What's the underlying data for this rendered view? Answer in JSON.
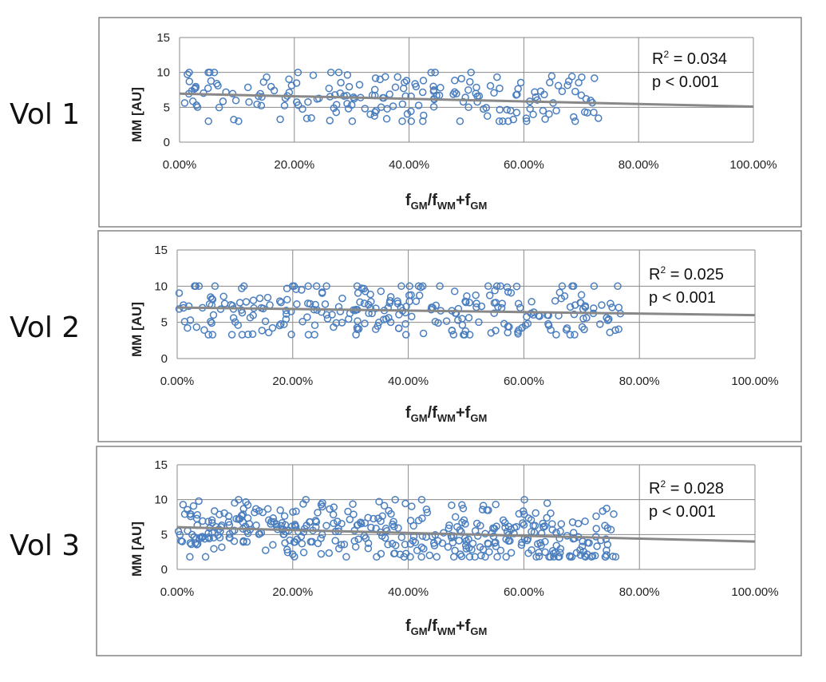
{
  "colors": {
    "marker": "#4a7ebf",
    "trendline": "#888888",
    "grid": "#8a8a8a",
    "frame": "#8c8c8c"
  },
  "chart_data": [
    {
      "type": "scatter",
      "volume_label": "Vol 1",
      "ylabel": "MM [AU]",
      "xlabel": {
        "f1": "f",
        "s1": "GM",
        "slash": "/",
        "f2": "f",
        "s2": "WM",
        "plus": "+",
        "f3": "f",
        "s3": "GM"
      },
      "xlim": [
        0,
        1
      ],
      "ylim": [
        0,
        15
      ],
      "xticks": [
        "0.00%",
        "20.00%",
        "40.00%",
        "60.00%",
        "80.00%",
        "100.00%"
      ],
      "yticks": [
        "0",
        "5",
        "10",
        "15"
      ],
      "grid": true,
      "r2_prefix": "R",
      "r2_exp": "2",
      "r2_value": " = 0.034",
      "p_text": "p < 0.001",
      "trendline": {
        "x": [
          0,
          1
        ],
        "y": [
          6.95,
          5.1
        ]
      },
      "n_points": 200,
      "seed": 11,
      "x_max": 0.73,
      "y_min": 3.0,
      "y_max": 10.0
    },
    {
      "type": "scatter",
      "volume_label": "Vol 2",
      "ylabel": "MM [AU]",
      "xlabel": {
        "f1": "f",
        "s1": "GM",
        "slash": "/",
        "f2": "f",
        "s2": "WM",
        "plus": "+",
        "f3": "f",
        "s3": "GM"
      },
      "xlim": [
        0,
        1
      ],
      "ylim": [
        0,
        15
      ],
      "xticks": [
        "0.00%",
        "20.00%",
        "40.00%",
        "60.00%",
        "80.00%",
        "100.00%"
      ],
      "yticks": [
        "0",
        "5",
        "10",
        "15"
      ],
      "grid": true,
      "r2_prefix": "R",
      "r2_exp": "2",
      "r2_value": " = 0.025",
      "p_text": "p < 0.001",
      "trendline": {
        "x": [
          0,
          1
        ],
        "y": [
          7.05,
          6.0
        ]
      },
      "n_points": 280,
      "seed": 23,
      "x_max": 0.77,
      "y_min": 3.3,
      "y_max": 10.0
    },
    {
      "type": "scatter",
      "volume_label": "Vol 3",
      "ylabel": "MM [AU]",
      "xlabel": {
        "f1": "f",
        "s1": "GM",
        "slash": "/",
        "f2": "f",
        "s2": "WM",
        "plus": "+",
        "f3": "f",
        "s3": "GM"
      },
      "xlim": [
        0,
        1
      ],
      "ylim": [
        0,
        15
      ],
      "xticks": [
        "0.00%",
        "20.00%",
        "40.00%",
        "60.00%",
        "80.00%",
        "100.00%"
      ],
      "yticks": [
        "0",
        "5",
        "10",
        "15"
      ],
      "grid": true,
      "r2_prefix": "R",
      "r2_exp": "2",
      "r2_value": " = 0.028",
      "p_text": "p < 0.001",
      "trendline": {
        "x": [
          0,
          1
        ],
        "y": [
          6.05,
          4.0
        ]
      },
      "n_points": 420,
      "seed": 37,
      "x_max": 0.76,
      "y_min": 1.8,
      "y_max": 10.0
    }
  ]
}
